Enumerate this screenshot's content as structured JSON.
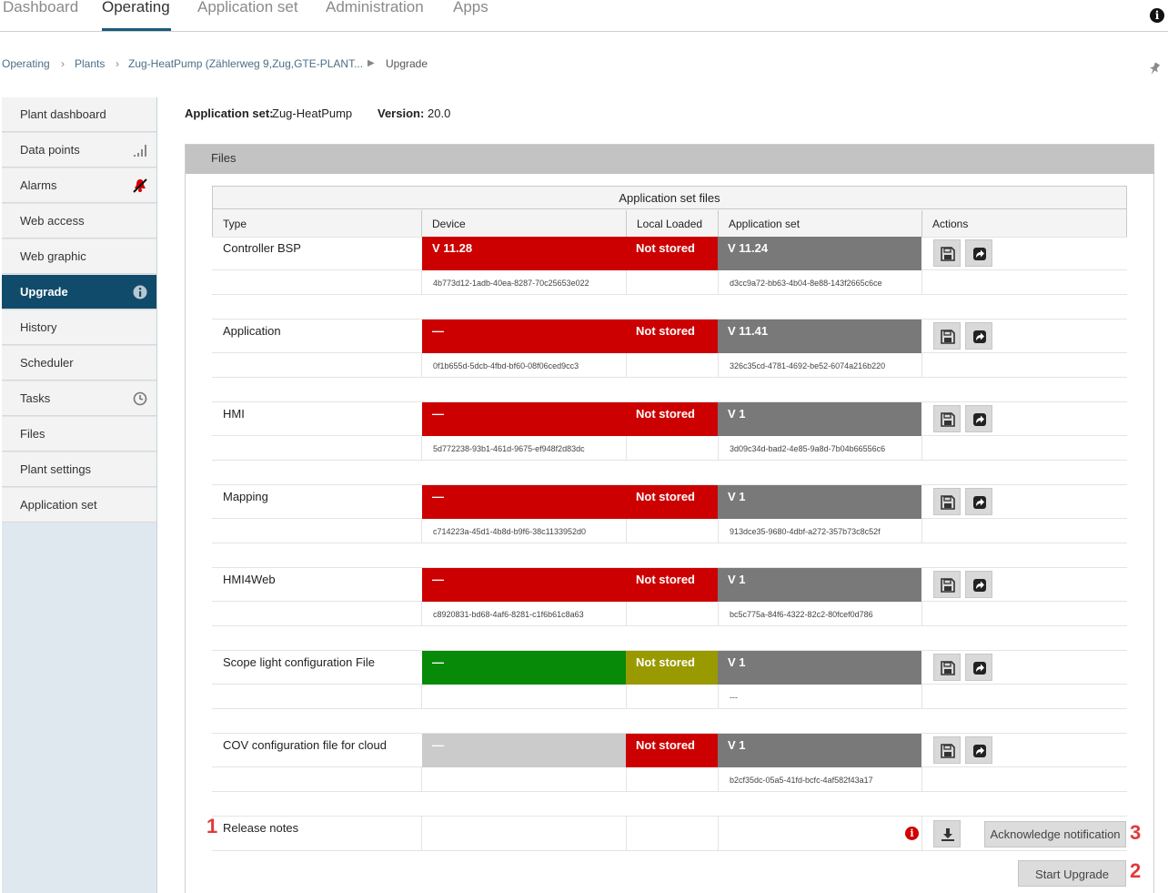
{
  "topnav": {
    "tabs": [
      "Dashboard",
      "Operating",
      "Application set",
      "Administration",
      "Apps"
    ],
    "active": "Operating"
  },
  "breadcrumb": {
    "items": [
      "Operating",
      "Plants",
      "Zug-HeatPump (Zählerweg 9,Zug,GTE-PLANT...",
      "Upgrade"
    ]
  },
  "sidebar": {
    "items": [
      {
        "label": "Plant dashboard"
      },
      {
        "label": "Data points",
        "icon": "signal-bars-icon"
      },
      {
        "label": "Alarms",
        "icon": "alarm-bell-icon"
      },
      {
        "label": "Web access"
      },
      {
        "label": "Web graphic"
      },
      {
        "label": "Upgrade",
        "icon": "info-icon",
        "active": true
      },
      {
        "label": "History"
      },
      {
        "label": "Scheduler"
      },
      {
        "label": "Tasks",
        "icon": "clock-icon"
      },
      {
        "label": "Files"
      },
      {
        "label": "Plant settings"
      },
      {
        "label": "Application set"
      }
    ]
  },
  "header": {
    "appset_label": "Application set:",
    "appset_value": "Zug-HeatPump",
    "version_label": "Version:",
    "version_value": "20.0"
  },
  "files": {
    "panel_title": "Files",
    "table_title": "Application set files",
    "columns": [
      "Type",
      "Device",
      "Local Loaded",
      "Application set",
      "Actions"
    ],
    "rows": [
      {
        "type": "Controller BSP",
        "device": "V 11.28",
        "device_color": "#cc0000",
        "local": "Not stored",
        "local_color": "#cc0000",
        "appset": "V 11.24",
        "device_hash": "4b773d12-1adb-40ea-8287-70c25653e022",
        "appset_hash": "d3cc9a72-bb63-4b04-8e88-143f2665c6ce"
      },
      {
        "type": "Application",
        "device": "—",
        "device_color": "#cc0000",
        "local": "Not stored",
        "local_color": "#cc0000",
        "appset": "V 11.41",
        "device_hash": "0f1b655d-5dcb-4fbd-bf60-08f06ced9cc3",
        "appset_hash": "326c35cd-4781-4692-be52-6074a216b220"
      },
      {
        "type": "HMI",
        "device": "—",
        "device_color": "#cc0000",
        "local": "Not stored",
        "local_color": "#cc0000",
        "appset": "V 1",
        "device_hash": "5d772238-93b1-461d-9675-ef948f2d83dc",
        "appset_hash": "3d09c34d-bad2-4e85-9a8d-7b04b66556c6"
      },
      {
        "type": "Mapping",
        "device": "—",
        "device_color": "#cc0000",
        "local": "Not stored",
        "local_color": "#cc0000",
        "appset": "V 1",
        "device_hash": "c714223a-45d1-4b8d-b9f6-38c1133952d0",
        "appset_hash": "913dce35-9680-4dbf-a272-357b73c8c52f"
      },
      {
        "type": "HMI4Web",
        "device": "—",
        "device_color": "#cc0000",
        "local": "Not stored",
        "local_color": "#cc0000",
        "appset": "V 1",
        "device_hash": "c8920831-bd68-4af6-8281-c1f6b61c8a63",
        "appset_hash": "bc5c775a-84f6-4322-82c2-80fcef0d786"
      },
      {
        "type": "Scope light configuration File",
        "device": "—",
        "device_color": "#078a07",
        "local": "Not stored",
        "local_color": "#999900",
        "appset": "V 1",
        "device_hash": "",
        "appset_hash": "---"
      },
      {
        "type": "COV configuration file for cloud",
        "device": "—",
        "device_color": "#cbcbcb",
        "local": "Not stored",
        "local_color": "#cc0000",
        "appset": "V 1",
        "device_hash": "",
        "appset_hash": "b2cf35dc-05a5-41fd-bcfc-4af582f43a17"
      }
    ],
    "appset_color": "#797979"
  },
  "release_notes": {
    "label": "Release notes",
    "marker_1": "1",
    "marker_2": "2",
    "marker_3": "3",
    "acknowledge_button": "Acknowledge notification",
    "start_upgrade_button": "Start Upgrade"
  }
}
